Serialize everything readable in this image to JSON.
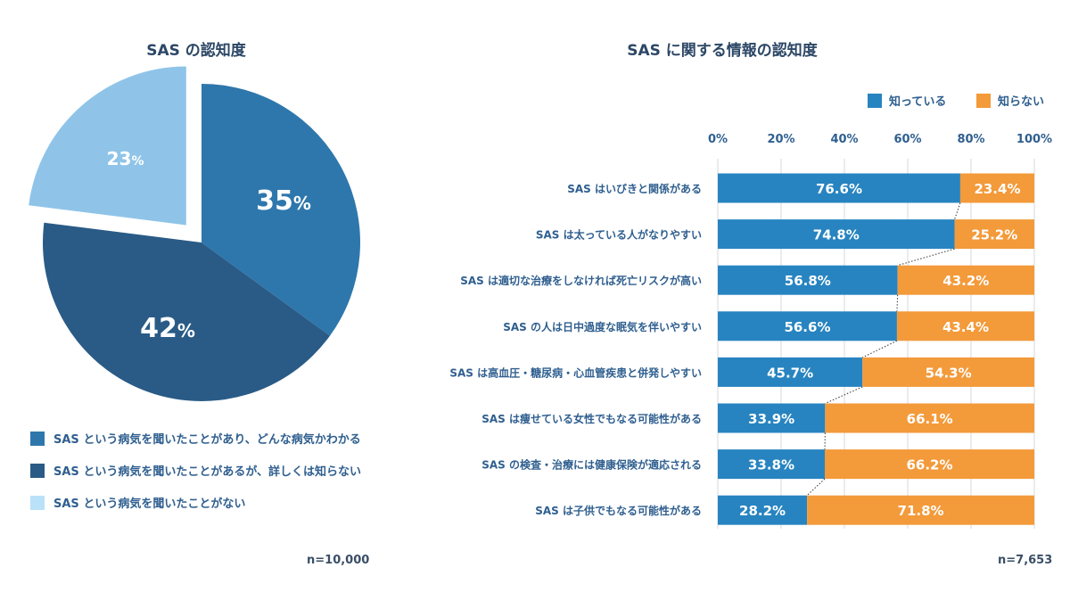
{
  "chart_data": [
    {
      "type": "pie",
      "title": "SAS の認知度",
      "slices": [
        {
          "label": "SAS という病気を聞いたことがあり、どんな病気かわかる",
          "value": 35,
          "display": "35",
          "color": "#2e77ac"
        },
        {
          "label": "SAS という病気を聞いたことがあるが、詳しくは知らない",
          "value": 42,
          "display": "42",
          "color": "#2a5b86"
        },
        {
          "label": "SAS という病気を聞いたことがない",
          "value": 23,
          "display": "23",
          "color": "#8fc4e8"
        }
      ],
      "unit": "%",
      "n_label": "n=10,000"
    },
    {
      "type": "bar",
      "orientation": "horizontal",
      "stacked": true,
      "title": "SAS に関する情報の認知度",
      "categories": [
        "SAS はいびきと関係がある",
        "SAS は太っている人がなりやすい",
        "SAS は適切な治療をしなければ死亡リスクが高い",
        "SAS の人は日中過度な眠気を伴いやすい",
        "SAS は高血圧・糖尿病・心血管疾患と併発しやすい",
        "SAS は痩せている女性でもなる可能性がある",
        "SAS の検査・治療には健康保険が適応される",
        "SAS は子供でもなる可能性がある"
      ],
      "series": [
        {
          "name": "知っている",
          "color": "#2784c0",
          "values": [
            76.6,
            74.8,
            56.8,
            56.6,
            45.7,
            33.9,
            33.8,
            28.2
          ],
          "labels": [
            "76.6%",
            "74.8%",
            "56.8%",
            "56.6%",
            "45.7%",
            "33.9%",
            "33.8%",
            "28.2%"
          ]
        },
        {
          "name": "知らない",
          "color": "#f39a3a",
          "values": [
            23.4,
            25.2,
            43.2,
            43.4,
            54.3,
            66.1,
            66.2,
            71.8
          ],
          "labels": [
            "23.4%",
            "25.2%",
            "43.2%",
            "43.4%",
            "54.3%",
            "66.1%",
            "66.2%",
            "71.8%"
          ]
        }
      ],
      "xlim": [
        0,
        100
      ],
      "xticks": [
        "0%",
        "20%",
        "40%",
        "60%",
        "80%",
        "100%"
      ],
      "grid": true,
      "legend": "top-right",
      "n_label": "n=7,653"
    }
  ]
}
